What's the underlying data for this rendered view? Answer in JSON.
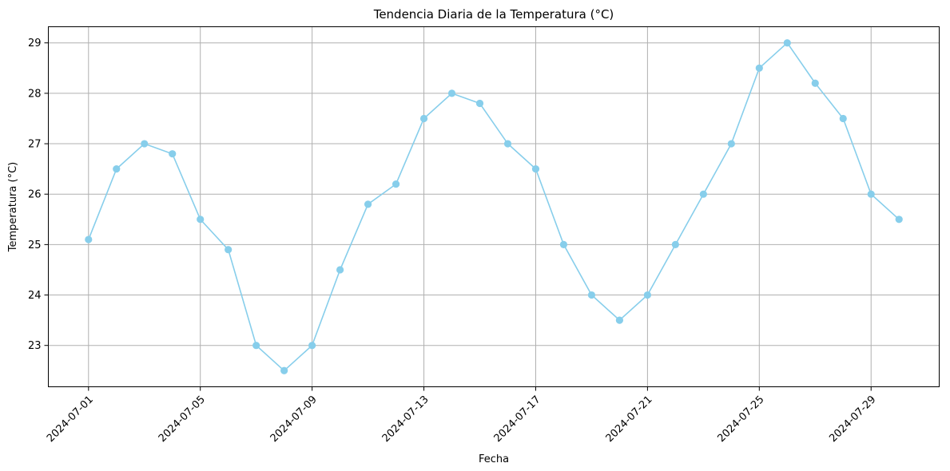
{
  "chart_data": {
    "type": "line",
    "title": "Tendencia Diaria de la Temperatura (°C)",
    "xlabel": "Fecha",
    "ylabel": "Temperatura (°C)",
    "x": [
      "2024-07-01",
      "2024-07-02",
      "2024-07-03",
      "2024-07-04",
      "2024-07-05",
      "2024-07-06",
      "2024-07-07",
      "2024-07-08",
      "2024-07-09",
      "2024-07-10",
      "2024-07-11",
      "2024-07-12",
      "2024-07-13",
      "2024-07-14",
      "2024-07-15",
      "2024-07-16",
      "2024-07-17",
      "2024-07-18",
      "2024-07-19",
      "2024-07-20",
      "2024-07-21",
      "2024-07-22",
      "2024-07-23",
      "2024-07-24",
      "2024-07-25",
      "2024-07-26",
      "2024-07-27",
      "2024-07-28",
      "2024-07-29",
      "2024-07-30"
    ],
    "series": [
      {
        "values": [
          25.1,
          26.5,
          27.0,
          26.8,
          25.5,
          24.9,
          23.0,
          22.5,
          23.0,
          24.5,
          25.8,
          26.2,
          27.5,
          28.0,
          27.8,
          27.0,
          26.5,
          25.0,
          24.0,
          23.5,
          24.0,
          25.0,
          26.0,
          27.0,
          28.5,
          29.0,
          28.2,
          27.5,
          26.0,
          25.5
        ],
        "color": "#87ceeb",
        "marker": "circle"
      }
    ],
    "xticks": [
      "2024-07-01",
      "2024-07-05",
      "2024-07-09",
      "2024-07-13",
      "2024-07-17",
      "2024-07-21",
      "2024-07-25",
      "2024-07-29"
    ],
    "yticks": [
      23,
      24,
      25,
      26,
      27,
      28,
      29
    ],
    "xlim": [
      "2024-06-29T13:30",
      "2024-07-31T10:30"
    ],
    "ylim": [
      22.18,
      29.32
    ],
    "grid": true,
    "xtick_rotation": 45
  }
}
